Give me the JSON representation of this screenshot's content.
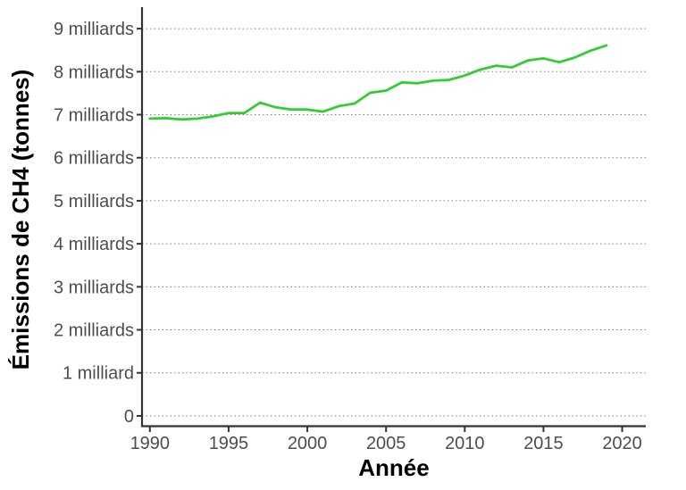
{
  "chart_data": {
    "type": "line",
    "title": "",
    "xlabel": "Année",
    "ylabel": "Émissions de CH4 (tonnes)",
    "xlim": [
      1989.5,
      2021.5
    ],
    "ylim": [
      -0.25,
      9.5
    ],
    "y_unit_note": "values in milliards (billions) of tonnes",
    "x_ticks": [
      {
        "value": 1990,
        "label": "1990"
      },
      {
        "value": 1995,
        "label": "1995"
      },
      {
        "value": 2000,
        "label": "2000"
      },
      {
        "value": 2005,
        "label": "2005"
      },
      {
        "value": 2010,
        "label": "2010"
      },
      {
        "value": 2015,
        "label": "2015"
      },
      {
        "value": 2020,
        "label": "2020"
      }
    ],
    "y_ticks": [
      {
        "value": 0,
        "label": "0"
      },
      {
        "value": 1,
        "label": "1 milliard"
      },
      {
        "value": 2,
        "label": "2 milliards"
      },
      {
        "value": 3,
        "label": "3 milliards"
      },
      {
        "value": 4,
        "label": "4 milliards"
      },
      {
        "value": 5,
        "label": "5 milliards"
      },
      {
        "value": 6,
        "label": "6 milliards"
      },
      {
        "value": 7,
        "label": "7 milliards"
      },
      {
        "value": 8,
        "label": "8 milliards"
      },
      {
        "value": 9,
        "label": "9 milliards"
      }
    ],
    "grid": "horizontal dotted",
    "series": [
      {
        "color": "#33cc33",
        "x": [
          1990,
          1991,
          1992,
          1993,
          1994,
          1995,
          1996,
          1997,
          1998,
          1999,
          2000,
          2001,
          2002,
          2003,
          2004,
          2005,
          2006,
          2007,
          2008,
          2009,
          2010,
          2011,
          2012,
          2013,
          2014,
          2015,
          2016,
          2017,
          2018,
          2019
        ],
        "values": [
          6.91,
          6.92,
          6.89,
          6.91,
          6.96,
          7.04,
          7.04,
          7.28,
          7.17,
          7.12,
          7.12,
          7.07,
          7.2,
          7.26,
          7.51,
          7.56,
          7.75,
          7.73,
          7.79,
          7.81,
          7.91,
          8.05,
          8.14,
          8.1,
          8.26,
          8.31,
          8.22,
          8.33,
          8.49,
          8.61
        ]
      }
    ]
  }
}
